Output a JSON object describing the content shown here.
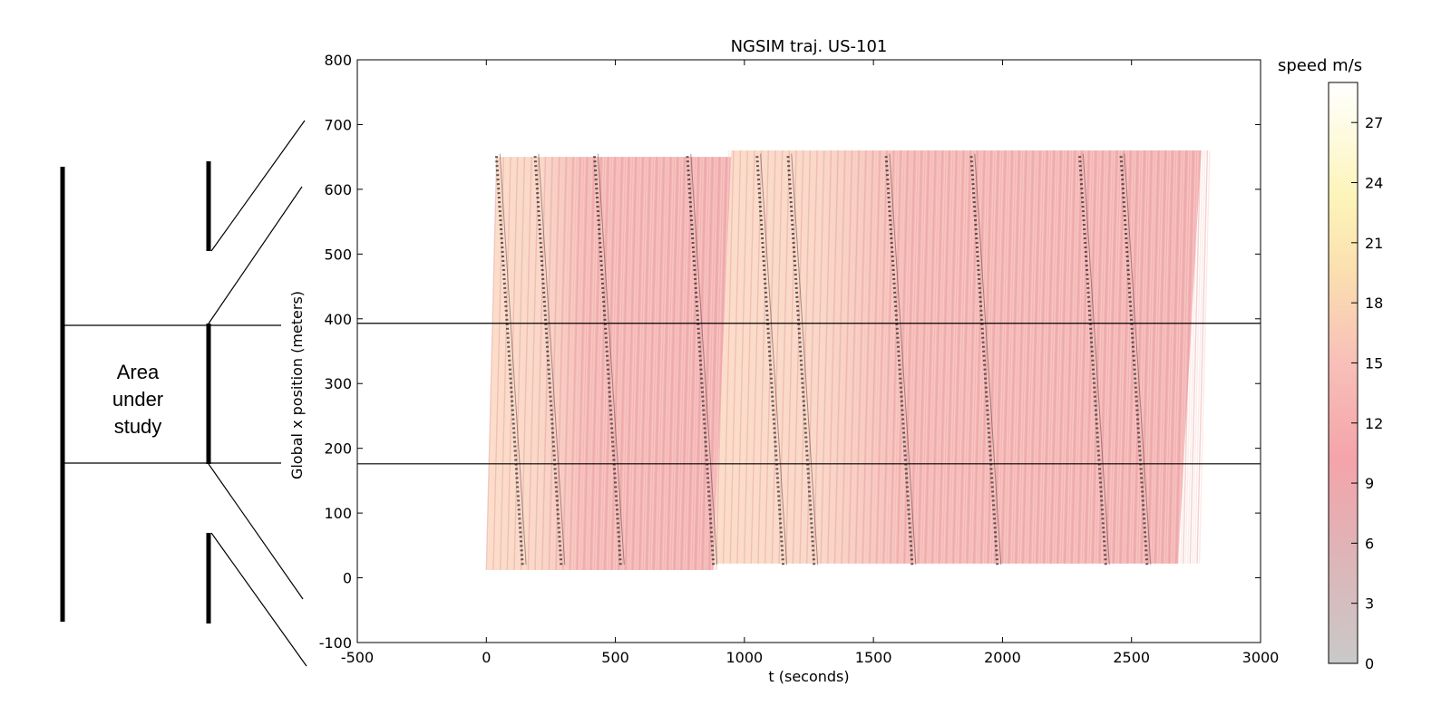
{
  "diagram": {
    "area_label_lines": [
      "Area",
      "under",
      "study"
    ]
  },
  "chart_data": {
    "type": "heatmap",
    "title": "NGSIM traj. US-101",
    "xlabel": "t (seconds)",
    "ylabel": "Global x position (meters)",
    "xlim": [
      -500,
      3000
    ],
    "ylim": [
      -100,
      800
    ],
    "x_ticks": [
      -500,
      0,
      500,
      1000,
      1500,
      2000,
      2500,
      3000
    ],
    "y_ticks": [
      -100,
      0,
      100,
      200,
      300,
      400,
      500,
      600,
      700,
      800
    ],
    "reference_lines_y": [
      393,
      176
    ],
    "trajectory_region": {
      "segments": [
        {
          "t_start_bottom": 0,
          "t_end_bottom": 880,
          "t_start_top": 40,
          "t_end_top": 950,
          "x_bottom": 12,
          "x_top": 650
        },
        {
          "t_start_bottom": 880,
          "t_end_bottom": 2680,
          "t_start_top": 950,
          "t_end_top": 2770,
          "x_bottom": 22,
          "x_top": 660
        }
      ]
    },
    "congestion_waves_t_at_bottom": [
      140,
      290,
      520,
      880,
      1150,
      1270,
      1650,
      1980,
      2400,
      2560
    ],
    "wave_slope_t_per_m": -0.16,
    "colorbar": {
      "label": "speed m/s",
      "min": 0,
      "max": 29,
      "ticks": [
        0,
        3,
        6,
        9,
        12,
        15,
        18,
        21,
        24,
        27
      ],
      "colors": {
        "low": "#c8c8c8",
        "mid": "#f4a3a8",
        "high_mid": "#ffe3b3",
        "high": "#ffffff"
      }
    },
    "grid": false
  }
}
